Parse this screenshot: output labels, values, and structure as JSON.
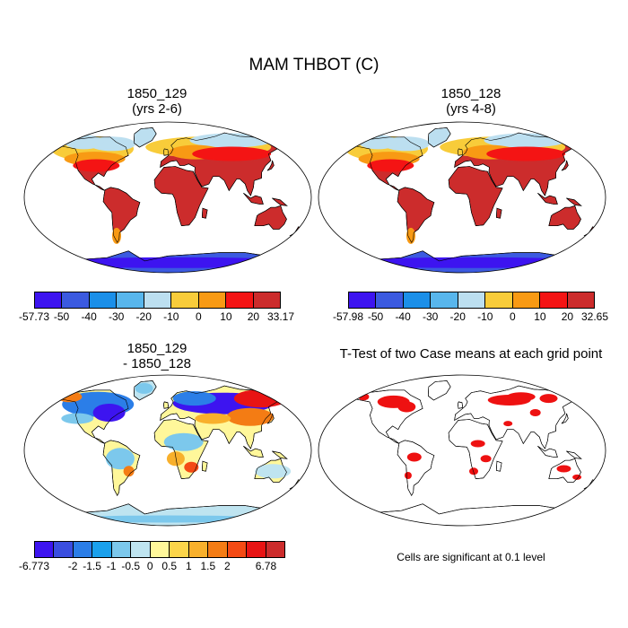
{
  "title": "MAM THBOT (C)",
  "panels": [
    {
      "id": "case1",
      "title_line1": "1850_129",
      "title_line2": "(yrs 2-6)",
      "labels": [
        "-57.73",
        "-50",
        "-40",
        "-30",
        "-20",
        "-10",
        "0",
        "10",
        "20",
        "33.17"
      ],
      "colors": [
        "#3d14f0",
        "#3b5ae0",
        "#1b8fe8",
        "#58b6ec",
        "#bcdff0",
        "#f8cc3a",
        "#f89a14",
        "#f41414",
        "#cc2c2c"
      ]
    },
    {
      "id": "case2",
      "title_line1": "1850_128",
      "title_line2": "(yrs 4-8)",
      "labels": [
        "-57.98",
        "-50",
        "-40",
        "-30",
        "-20",
        "-10",
        "0",
        "10",
        "20",
        "32.65"
      ],
      "colors": [
        "#3d14f0",
        "#3b5ae0",
        "#1b8fe8",
        "#58b6ec",
        "#bcdff0",
        "#f8cc3a",
        "#f89a14",
        "#f41414",
        "#cc2c2c"
      ]
    },
    {
      "id": "diff",
      "title_line1": "1850_129",
      "title_line2": "- 1850_128",
      "labels": [
        "-6.773",
        "",
        "-2",
        "-1.5",
        "-1",
        "-0.5",
        "0",
        "0.5",
        "1",
        "1.5",
        "2",
        "",
        "6.78"
      ],
      "colors": [
        "#3d14f0",
        "#3a4ee0",
        "#2b7ee8",
        "#1aa0ec",
        "#7cc8ec",
        "#bfe4f0",
        "#fff79a",
        "#fcd54a",
        "#f8b02c",
        "#f47c14",
        "#f44a14",
        "#e81414",
        "#cc2c2c"
      ]
    },
    {
      "id": "ttest",
      "title_line1": "T-Test of two Case means at each grid point",
      "note": "Cells are significant at 0.1 level",
      "sig_color": "#ee1111"
    }
  ]
}
